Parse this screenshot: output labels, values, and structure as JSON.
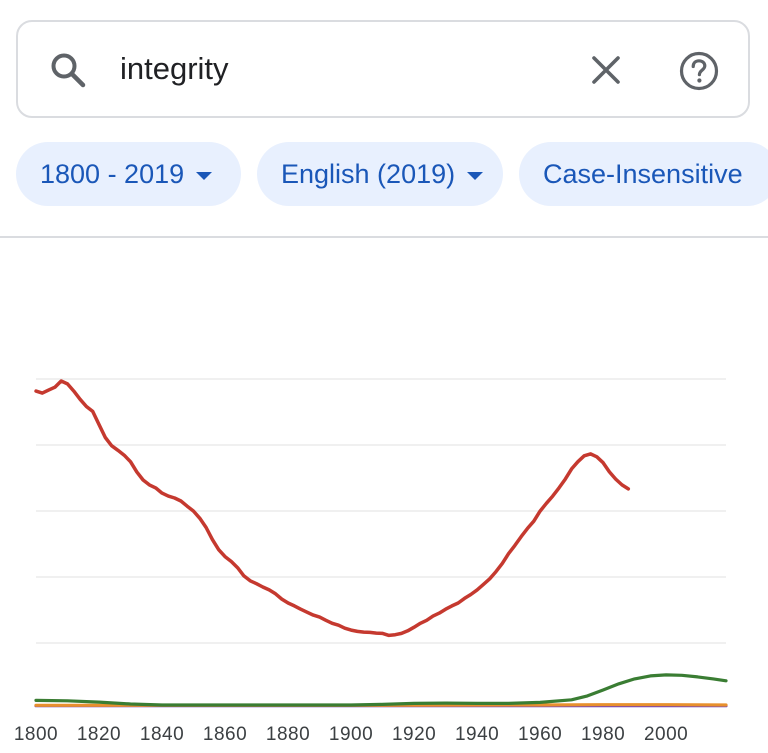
{
  "search": {
    "query": "integrity",
    "search_icon": "search-icon",
    "clear_icon": "close-icon",
    "help_icon": "help-circle-icon"
  },
  "filters": {
    "years": "1800 - 2019",
    "corpus": "English (2019)",
    "case": "Case-Insensitive"
  },
  "chart_data": {
    "type": "line",
    "xlim": [
      1800,
      2019
    ],
    "ylim": [
      0,
      1
    ],
    "x_ticks": [
      1800,
      1820,
      1840,
      1860,
      1880,
      1900,
      1920,
      1940,
      1960,
      1980,
      2000
    ],
    "grid": "horizontal",
    "series": [
      {
        "color": "#c5392f",
        "points": [
          [
            1800,
            0.963
          ],
          [
            1802,
            0.957
          ],
          [
            1804,
            0.966
          ],
          [
            1806,
            0.975
          ],
          [
            1808,
            0.994
          ],
          [
            1810,
            0.985
          ],
          [
            1812,
            0.963
          ],
          [
            1814,
            0.938
          ],
          [
            1816,
            0.916
          ],
          [
            1818,
            0.901
          ],
          [
            1820,
            0.861
          ],
          [
            1822,
            0.821
          ],
          [
            1824,
            0.796
          ],
          [
            1826,
            0.782
          ],
          [
            1828,
            0.767
          ],
          [
            1830,
            0.747
          ],
          [
            1832,
            0.716
          ],
          [
            1834,
            0.691
          ],
          [
            1836,
            0.676
          ],
          [
            1838,
            0.667
          ],
          [
            1840,
            0.651
          ],
          [
            1842,
            0.642
          ],
          [
            1844,
            0.636
          ],
          [
            1846,
            0.627
          ],
          [
            1848,
            0.611
          ],
          [
            1850,
            0.596
          ],
          [
            1852,
            0.574
          ],
          [
            1854,
            0.546
          ],
          [
            1856,
            0.509
          ],
          [
            1858,
            0.478
          ],
          [
            1860,
            0.457
          ],
          [
            1862,
            0.442
          ],
          [
            1864,
            0.423
          ],
          [
            1866,
            0.398
          ],
          [
            1868,
            0.383
          ],
          [
            1870,
            0.374
          ],
          [
            1872,
            0.364
          ],
          [
            1874,
            0.355
          ],
          [
            1876,
            0.343
          ],
          [
            1878,
            0.327
          ],
          [
            1880,
            0.315
          ],
          [
            1882,
            0.306
          ],
          [
            1884,
            0.296
          ],
          [
            1886,
            0.287
          ],
          [
            1888,
            0.278
          ],
          [
            1890,
            0.272
          ],
          [
            1892,
            0.262
          ],
          [
            1894,
            0.253
          ],
          [
            1896,
            0.247
          ],
          [
            1898,
            0.238
          ],
          [
            1900,
            0.232
          ],
          [
            1902,
            0.228
          ],
          [
            1904,
            0.226
          ],
          [
            1906,
            0.225
          ],
          [
            1908,
            0.223
          ],
          [
            1910,
            0.222
          ],
          [
            1912,
            0.216
          ],
          [
            1914,
            0.218
          ],
          [
            1916,
            0.222
          ],
          [
            1918,
            0.23
          ],
          [
            1920,
            0.241
          ],
          [
            1922,
            0.253
          ],
          [
            1924,
            0.262
          ],
          [
            1926,
            0.275
          ],
          [
            1928,
            0.284
          ],
          [
            1930,
            0.296
          ],
          [
            1932,
            0.306
          ],
          [
            1934,
            0.315
          ],
          [
            1936,
            0.329
          ],
          [
            1938,
            0.341
          ],
          [
            1940,
            0.355
          ],
          [
            1942,
            0.372
          ],
          [
            1944,
            0.389
          ],
          [
            1946,
            0.411
          ],
          [
            1948,
            0.436
          ],
          [
            1950,
            0.466
          ],
          [
            1952,
            0.491
          ],
          [
            1954,
            0.518
          ],
          [
            1956,
            0.543
          ],
          [
            1958,
            0.565
          ],
          [
            1960,
            0.596
          ],
          [
            1962,
            0.62
          ],
          [
            1964,
            0.642
          ],
          [
            1966,
            0.667
          ],
          [
            1968,
            0.694
          ],
          [
            1970,
            0.725
          ],
          [
            1972,
            0.747
          ],
          [
            1974,
            0.765
          ],
          [
            1976,
            0.771
          ],
          [
            1978,
            0.762
          ],
          [
            1980,
            0.744
          ],
          [
            1982,
            0.716
          ],
          [
            1984,
            0.694
          ],
          [
            1986,
            0.676
          ],
          [
            1988,
            0.664
          ]
        ]
      },
      {
        "color": "#3a7d33",
        "points": [
          [
            1800,
            0.017
          ],
          [
            1810,
            0.016
          ],
          [
            1820,
            0.012
          ],
          [
            1830,
            0.006
          ],
          [
            1840,
            0.003
          ],
          [
            1850,
            0.003
          ],
          [
            1860,
            0.003
          ],
          [
            1870,
            0.003
          ],
          [
            1880,
            0.003
          ],
          [
            1890,
            0.003
          ],
          [
            1900,
            0.003
          ],
          [
            1910,
            0.005
          ],
          [
            1920,
            0.008
          ],
          [
            1930,
            0.009
          ],
          [
            1940,
            0.008
          ],
          [
            1950,
            0.008
          ],
          [
            1960,
            0.011
          ],
          [
            1970,
            0.019
          ],
          [
            1975,
            0.031
          ],
          [
            1980,
            0.049
          ],
          [
            1985,
            0.068
          ],
          [
            1990,
            0.083
          ],
          [
            1995,
            0.092
          ],
          [
            2000,
            0.095
          ],
          [
            2005,
            0.094
          ],
          [
            2010,
            0.089
          ],
          [
            2015,
            0.083
          ],
          [
            2019,
            0.077
          ]
        ]
      },
      {
        "color": "#e8902e",
        "points": [
          [
            1800,
            0.002
          ],
          [
            1900,
            0.002
          ],
          [
            1960,
            0.003
          ],
          [
            1980,
            0.004
          ],
          [
            2000,
            0.004
          ],
          [
            2019,
            0.003
          ]
        ]
      },
      {
        "color": "#6a3ec0",
        "points": [
          [
            1800,
            0.001
          ],
          [
            2019,
            0.001
          ]
        ]
      }
    ]
  }
}
